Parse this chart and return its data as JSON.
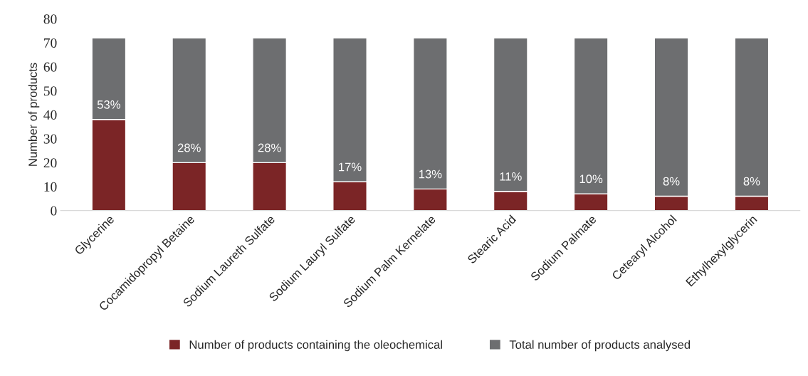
{
  "chart_data": {
    "type": "bar",
    "stacked": true,
    "ylabel": "Number of products",
    "categories": [
      "Glycerine",
      "Cocamidopropyl Betaine",
      "Sodium Laureth Sulfate",
      "Sodium Lauryl Sulfate",
      "Sodium Palm Kernelate",
      "Stearic Acid",
      "Sodium Palmate",
      "Cetearyl Alcohol",
      "Ethylhexylglycerin"
    ],
    "series": [
      {
        "name": "Number of products containing the oleochemical",
        "color": "#7b2526",
        "values": [
          38,
          20,
          20,
          12,
          9,
          8,
          7,
          6,
          6
        ]
      },
      {
        "name": "Total number of products analysed",
        "color": "#6d6e70",
        "values": [
          34,
          52,
          52,
          60,
          63,
          64,
          65,
          66,
          66
        ]
      }
    ],
    "annotations": [
      {
        "text": "53%",
        "x": "Glycerine",
        "y": 38
      },
      {
        "text": "28%",
        "x": "Cocamidopropyl Betaine",
        "y": 20
      },
      {
        "text": "28%",
        "x": "Sodium Laureth Sulfate",
        "y": 20
      },
      {
        "text": "17%",
        "x": "Sodium Lauryl Sulfate",
        "y": 12
      },
      {
        "text": "13%",
        "x": "Sodium Palm Kernelate",
        "y": 9
      },
      {
        "text": "11%",
        "x": "Stearic Acid",
        "y": 8
      },
      {
        "text": "10%",
        "x": "Sodium Palmate",
        "y": 7
      },
      {
        "text": "8%",
        "x": "Cetearyl Alcohol",
        "y": 6
      },
      {
        "text": "8%",
        "x": "Ethylhexylglycerin",
        "y": 6
      }
    ],
    "ylim": [
      0,
      80
    ],
    "yticks": [
      0,
      10,
      20,
      30,
      40,
      50,
      60,
      70,
      80
    ],
    "grid": false,
    "legend": "bottom"
  }
}
